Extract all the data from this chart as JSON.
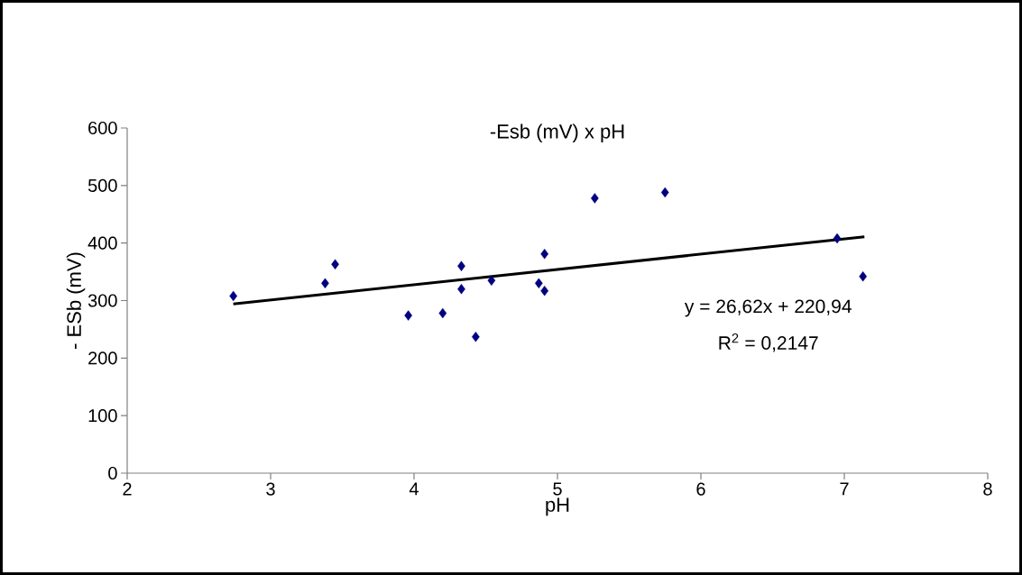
{
  "chart_data": {
    "type": "scatter",
    "title": "-Esb (mV) x pH",
    "xlabel": "pH",
    "ylabel": "- ESb (mV)",
    "marker": "diamond",
    "xlim": [
      2,
      8
    ],
    "xticks": [
      2,
      3,
      4,
      5,
      6,
      7,
      8
    ],
    "ylim": [
      0,
      600
    ],
    "yticks": [
      0,
      100,
      200,
      300,
      400,
      500,
      600
    ],
    "series": [
      {
        "color": "#000080",
        "x": [
          2.74,
          3.38,
          3.45,
          3.96,
          4.2,
          4.33,
          4.33,
          4.43,
          4.54,
          4.87,
          4.91,
          4.91,
          5.26,
          5.75,
          6.95,
          7.13
        ],
        "values": [
          308,
          330,
          363,
          274,
          278,
          360,
          320,
          237,
          335,
          330,
          381,
          317,
          478,
          488,
          408,
          342
        ]
      },
      {
        "type": "line",
        "color": "#000000",
        "marker": "none",
        "x": [
          2.74,
          7.14
        ],
        "values": [
          294,
          411
        ]
      }
    ],
    "annotations": [
      "y = 26,62x + 220,94",
      "R$^{2}$ = 0,2147"
    ]
  }
}
